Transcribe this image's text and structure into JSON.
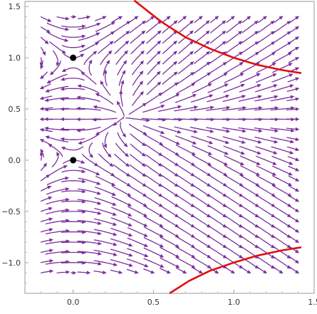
{
  "chart_data": {
    "type": "vector-field",
    "title": "",
    "xlabel": "",
    "ylabel": "",
    "xlim": [
      -0.3,
      1.5
    ],
    "ylim": [
      -1.3,
      1.55
    ],
    "x_ticks": [
      {
        "value": 0.0,
        "label": "0.0"
      },
      {
        "value": 0.5,
        "label": "0.5"
      },
      {
        "value": 1.0,
        "label": "1.0"
      },
      {
        "value": 1.5,
        "label": "1.5"
      }
    ],
    "y_ticks": [
      {
        "value": -1.0,
        "label": "−1.0"
      },
      {
        "value": -0.5,
        "label": "−0.5"
      },
      {
        "value": 0.0,
        "label": "0.0"
      },
      {
        "value": 0.5,
        "label": "0.5"
      },
      {
        "value": 1.0,
        "label": "1.0"
      },
      {
        "value": 1.5,
        "label": "1.5"
      }
    ],
    "field_region": {
      "x": [
        -0.2,
        1.4
      ],
      "y": [
        -1.1,
        1.4
      ]
    },
    "equilibria": [
      {
        "x": 0.0,
        "y": 1.0
      },
      {
        "x": 0.0,
        "y": 0.0
      }
    ],
    "curves": [
      {
        "name": "",
        "color": "#e01010",
        "points": [
          [
            0.38,
            1.56
          ],
          [
            0.55,
            1.35
          ],
          [
            0.7,
            1.2
          ],
          [
            0.85,
            1.09
          ],
          [
            1.0,
            1.0
          ],
          [
            1.15,
            0.93
          ],
          [
            1.3,
            0.88
          ],
          [
            1.42,
            0.85
          ]
        ]
      },
      {
        "name": "",
        "color": "#e01010",
        "points": [
          [
            0.6,
            -1.3
          ],
          [
            0.72,
            -1.18
          ],
          [
            0.85,
            -1.08
          ],
          [
            1.0,
            -1.0
          ],
          [
            1.15,
            -0.93
          ],
          [
            1.3,
            -0.88
          ],
          [
            1.42,
            -0.85
          ]
        ]
      }
    ],
    "grid": false,
    "legend": "none",
    "stream_color": "#7a2f9c"
  }
}
